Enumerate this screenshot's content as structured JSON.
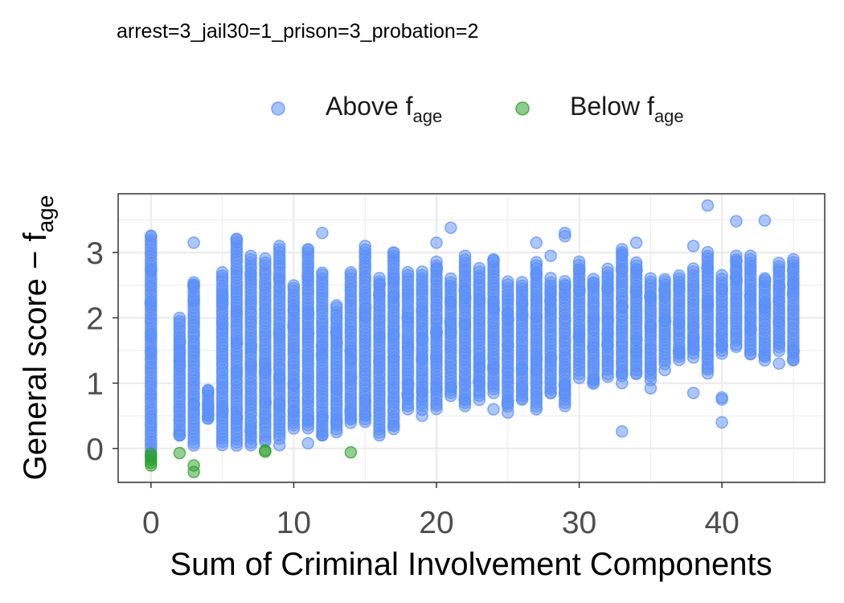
{
  "chart_data": {
    "type": "scatter",
    "title": "arrest=3_jail30=1_prison=3_probation=2",
    "xlabel": "Sum of Criminal Involvement Components",
    "ylabel": {
      "main": "General score −  f",
      "sub": "age"
    },
    "xlim": [
      -2.3,
      47.2
    ],
    "ylim": [
      -0.52,
      3.9
    ],
    "x_ticks": [
      0,
      10,
      20,
      30,
      40
    ],
    "x_tick_labels": [
      "0",
      "10",
      "20",
      "30",
      "40"
    ],
    "y_ticks": [
      0,
      1,
      2,
      3
    ],
    "y_tick_labels": [
      "0",
      "1",
      "2",
      "3"
    ],
    "grid": true,
    "legend_position": "top",
    "colors": {
      "above": "#5b8ff9",
      "below": "#2ca02c",
      "grid": "#ebebeb",
      "axis": "#333333",
      "text": "#1a1a1a",
      "tick_text": "#4d4d4d"
    },
    "legend": [
      {
        "key": "above",
        "main": "Above f",
        "sub": "age"
      },
      {
        "key": "below",
        "main": "Below f",
        "sub": "age"
      }
    ],
    "series": [
      {
        "name": "Above f_age",
        "key": "above",
        "column_ranges": [
          [
            0,
            -0.15,
            3.25
          ],
          [
            2,
            0.2,
            2.0
          ],
          [
            3,
            0.05,
            2.55
          ],
          [
            4,
            0.45,
            0.9
          ],
          [
            5,
            0.05,
            2.7
          ],
          [
            6,
            0.05,
            3.2
          ],
          [
            7,
            0.05,
            2.95
          ],
          [
            8,
            0.1,
            2.9
          ],
          [
            9,
            0.15,
            3.05
          ],
          [
            10,
            0.3,
            2.5
          ],
          [
            11,
            0.3,
            3.05
          ],
          [
            12,
            0.2,
            2.7
          ],
          [
            13,
            0.3,
            2.2
          ],
          [
            14,
            0.4,
            2.7
          ],
          [
            15,
            0.4,
            3.05
          ],
          [
            16,
            0.25,
            2.6
          ],
          [
            17,
            0.3,
            3.0
          ],
          [
            18,
            0.6,
            2.7
          ],
          [
            19,
            0.6,
            2.7
          ],
          [
            20,
            0.6,
            2.85
          ],
          [
            21,
            0.8,
            2.6
          ],
          [
            22,
            0.7,
            2.9
          ],
          [
            23,
            0.75,
            2.75
          ],
          [
            24,
            0.85,
            2.9
          ],
          [
            25,
            0.65,
            2.55
          ],
          [
            26,
            0.75,
            2.55
          ],
          [
            27,
            0.65,
            2.85
          ],
          [
            28,
            0.85,
            2.6
          ],
          [
            29,
            0.7,
            2.55
          ],
          [
            30,
            1.15,
            2.85
          ],
          [
            31,
            1.0,
            2.6
          ],
          [
            32,
            1.15,
            2.75
          ],
          [
            33,
            1.1,
            3.0
          ],
          [
            34,
            1.15,
            2.85
          ],
          [
            35,
            1.05,
            2.6
          ],
          [
            36,
            1.3,
            2.6
          ],
          [
            37,
            1.35,
            2.65
          ],
          [
            38,
            1.4,
            2.75
          ],
          [
            39,
            1.2,
            3.0
          ],
          [
            40,
            1.45,
            2.65
          ],
          [
            41,
            1.55,
            2.9
          ],
          [
            42,
            1.45,
            2.9
          ],
          [
            43,
            1.35,
            2.6
          ],
          [
            44,
            1.5,
            2.85
          ],
          [
            45,
            1.35,
            2.9
          ]
        ],
        "extra_points": [
          [
            0,
            3.25
          ],
          [
            3,
            3.15
          ],
          [
            6,
            3.2
          ],
          [
            9,
            3.1
          ],
          [
            11,
            3.05
          ],
          [
            12,
            3.3
          ],
          [
            15,
            3.1
          ],
          [
            17,
            3.0
          ],
          [
            20,
            3.15
          ],
          [
            21,
            3.38
          ],
          [
            22,
            2.95
          ],
          [
            27,
            3.15
          ],
          [
            28,
            2.95
          ],
          [
            29,
            3.3
          ],
          [
            29,
            3.25
          ],
          [
            33,
            3.05
          ],
          [
            34,
            3.15
          ],
          [
            38,
            3.1
          ],
          [
            39,
            3.72
          ],
          [
            41,
            3.48
          ],
          [
            43,
            3.49
          ],
          [
            41,
            2.95
          ],
          [
            42,
            2.95
          ],
          [
            33,
            0.26
          ],
          [
            35,
            0.92
          ],
          [
            38,
            0.85
          ],
          [
            40,
            0.4
          ],
          [
            40,
            0.75
          ],
          [
            40,
            0.78
          ],
          [
            16,
            0.2
          ],
          [
            12,
            0.2
          ],
          [
            11,
            0.08
          ],
          [
            9,
            0.05
          ],
          [
            14,
            0.45
          ],
          [
            17,
            0.35
          ],
          [
            19,
            0.5
          ],
          [
            20,
            0.9
          ],
          [
            22,
            0.65
          ],
          [
            24,
            0.6
          ],
          [
            25,
            0.55
          ],
          [
            27,
            0.6
          ],
          [
            29,
            0.65
          ],
          [
            30,
            1.08
          ],
          [
            31,
            1.05
          ],
          [
            32,
            1.1
          ],
          [
            33,
            1.0
          ],
          [
            34,
            1.15
          ],
          [
            36,
            1.2
          ],
          [
            39,
            1.15
          ],
          [
            44,
            1.3
          ],
          [
            45,
            1.35
          ],
          [
            4,
            0.88
          ],
          [
            2,
            1.35
          ],
          [
            2,
            0.2
          ],
          [
            13,
            0.25
          ],
          [
            26,
            0.75
          ],
          [
            28,
            0.85
          ]
        ]
      },
      {
        "name": "Below f_age",
        "key": "below",
        "points": [
          [
            0,
            -0.08
          ],
          [
            0,
            -0.12
          ],
          [
            0,
            -0.18
          ],
          [
            0,
            -0.22
          ],
          [
            0,
            -0.26
          ],
          [
            2,
            -0.07
          ],
          [
            3,
            -0.26
          ],
          [
            3,
            -0.36
          ],
          [
            8,
            -0.05
          ],
          [
            8,
            -0.03
          ],
          [
            14,
            -0.06
          ]
        ]
      }
    ]
  }
}
